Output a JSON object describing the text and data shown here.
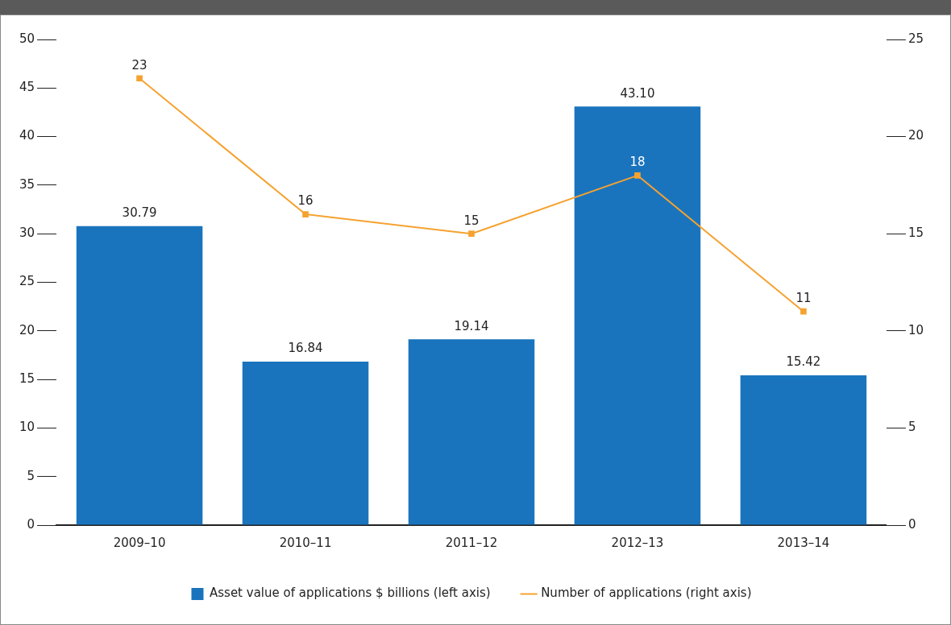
{
  "chart_data": {
    "type": "bar",
    "categories": [
      "2009–10",
      "2010–11",
      "2011–12",
      "2012–13",
      "2013–14"
    ],
    "series": [
      {
        "name": "Asset value of applications $ billions (left axis)",
        "color": "#1a74bd",
        "values": [
          30.79,
          16.84,
          19.14,
          43.1,
          15.42
        ],
        "value_labels": [
          "30.79",
          "16.84",
          "19.14",
          "43.10",
          "15.42"
        ]
      },
      {
        "name": "Number of applications (right axis)",
        "type": "line",
        "axis": "y2",
        "color": "#f5a230",
        "values": [
          23,
          16,
          15,
          18,
          11
        ],
        "value_labels": [
          "23",
          "16",
          "15",
          "18",
          "11"
        ]
      }
    ],
    "ylim": [
      0,
      50
    ],
    "yticks": [
      0,
      5,
      10,
      15,
      20,
      25,
      30,
      35,
      40,
      45,
      50
    ],
    "y2lim": [
      0,
      25
    ],
    "y2ticks": [
      0,
      5,
      10,
      15,
      20,
      25
    ],
    "grid": false,
    "legend": "bottom",
    "marker": "square",
    "line_style": "solid"
  }
}
